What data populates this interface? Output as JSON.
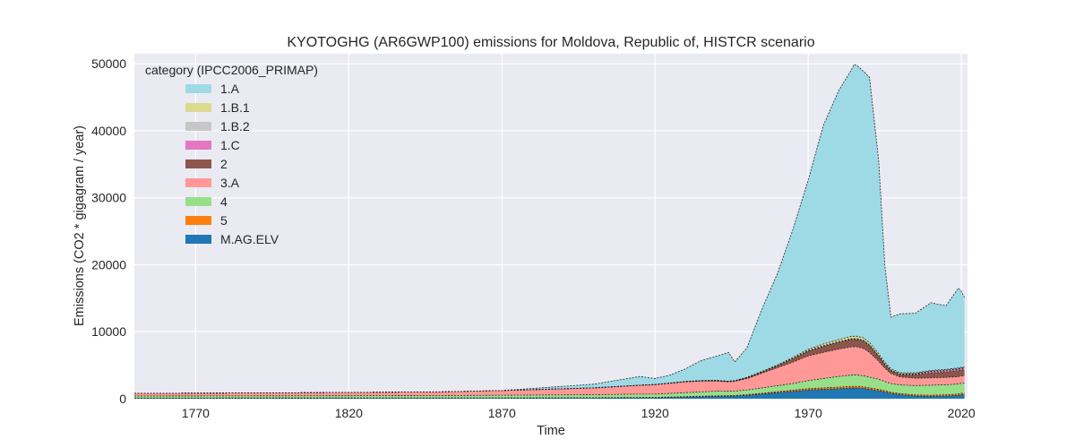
{
  "chart_data": {
    "type": "area",
    "title": "KYOTOGHG (AR6GWP100) emissions for Moldova, Republic of, HISTCR scenario",
    "xlabel": "Time",
    "ylabel": "Emissions (CO2 * gigagram / year)",
    "xlim": [
      1750,
      2022
    ],
    "ylim": [
      0,
      51500
    ],
    "xticks": [
      1770,
      1820,
      1870,
      1920,
      1970,
      2020
    ],
    "yticks": [
      0,
      10000,
      20000,
      30000,
      40000,
      50000
    ],
    "grid": true,
    "stacked": true,
    "legend": {
      "title": "category (IPCC2006_PRIMAP)",
      "placement": "top-left"
    },
    "x": [
      1750,
      1800,
      1850,
      1870,
      1900,
      1915,
      1920,
      1925,
      1930,
      1935,
      1940,
      1944,
      1946,
      1950,
      1955,
      1960,
      1965,
      1970,
      1975,
      1980,
      1984,
      1985,
      1986,
      1988,
      1990,
      1993,
      1995,
      1997,
      2000,
      2005,
      2010,
      2015,
      2019,
      2020,
      2021
    ],
    "series": [
      {
        "name": "M.AG.ELV",
        "color": "#1f77b4",
        "values": [
          80,
          90,
          100,
          100,
          120,
          150,
          150,
          200,
          250,
          300,
          350,
          380,
          400,
          500,
          700,
          900,
          1100,
          1300,
          1400,
          1500,
          1600,
          1600,
          1600,
          1550,
          1400,
          1200,
          1000,
          800,
          600,
          400,
          350,
          400,
          500,
          600,
          600
        ]
      },
      {
        "name": "5",
        "color": "#ff7f0e",
        "values": [
          20,
          20,
          20,
          20,
          30,
          40,
          40,
          50,
          60,
          70,
          80,
          80,
          90,
          100,
          120,
          150,
          170,
          200,
          220,
          230,
          240,
          240,
          240,
          230,
          220,
          200,
          180,
          170,
          160,
          160,
          170,
          180,
          200,
          210,
          210
        ]
      },
      {
        "name": "4",
        "color": "#98df8a",
        "values": [
          300,
          320,
          350,
          400,
          450,
          500,
          500,
          550,
          600,
          650,
          700,
          650,
          650,
          700,
          800,
          900,
          1000,
          1200,
          1400,
          1600,
          1700,
          1700,
          1700,
          1650,
          1600,
          1500,
          1400,
          1300,
          1300,
          1400,
          1500,
          1500,
          1500,
          1500,
          1500
        ]
      },
      {
        "name": "3.A",
        "color": "#ff9896",
        "values": [
          400,
          450,
          550,
          700,
          1000,
          1300,
          1400,
          1500,
          1600,
          1600,
          1500,
          1400,
          1450,
          1700,
          2200,
          2700,
          3200,
          3700,
          3900,
          4100,
          4200,
          4200,
          4200,
          4100,
          3700,
          2700,
          2000,
          1500,
          1200,
          1100,
          1100,
          1100,
          1100,
          1100,
          1100
        ]
      },
      {
        "name": "2",
        "color": "#8c564b",
        "values": [
          0,
          0,
          0,
          0,
          20,
          30,
          30,
          40,
          60,
          80,
          100,
          100,
          100,
          150,
          200,
          300,
          500,
          700,
          900,
          1000,
          1100,
          1100,
          1100,
          1100,
          1000,
          700,
          500,
          400,
          350,
          500,
          700,
          800,
          900,
          900,
          900
        ]
      },
      {
        "name": "1.C",
        "color": "#e377c2",
        "values": [
          0,
          0,
          0,
          0,
          0,
          0,
          0,
          0,
          0,
          0,
          0,
          0,
          0,
          0,
          0,
          0,
          0,
          0,
          0,
          0,
          0,
          0,
          0,
          0,
          0,
          0,
          0,
          0,
          0,
          100,
          200,
          200,
          200,
          200,
          200
        ]
      },
      {
        "name": "1.B.2",
        "color": "#c7c7c7",
        "values": [
          0,
          0,
          0,
          0,
          0,
          0,
          0,
          0,
          0,
          0,
          0,
          0,
          0,
          0,
          0,
          0,
          50,
          80,
          100,
          120,
          130,
          130,
          130,
          130,
          130,
          120,
          120,
          110,
          110,
          100,
          100,
          100,
          100,
          100,
          100
        ]
      },
      {
        "name": "1.B.1",
        "color": "#dbdb8d",
        "values": [
          0,
          0,
          0,
          0,
          0,
          0,
          0,
          0,
          0,
          0,
          0,
          0,
          0,
          50,
          80,
          100,
          150,
          200,
          250,
          300,
          350,
          350,
          350,
          350,
          350,
          300,
          250,
          200,
          150,
          100,
          100,
          100,
          100,
          100,
          100
        ]
      },
      {
        "name": "1.A",
        "color": "#9edae5",
        "values": [
          0,
          0,
          0,
          0,
          550,
          1300,
          900,
          1200,
          1900,
          3000,
          3600,
          4300,
          2800,
          4400,
          9400,
          13700,
          19100,
          25300,
          32700,
          37200,
          39700,
          40600,
          40400,
          39800,
          39600,
          28800,
          14500,
          7700,
          8800,
          8900,
          10100,
          9500,
          11900,
          11300,
          10400
        ]
      }
    ]
  }
}
